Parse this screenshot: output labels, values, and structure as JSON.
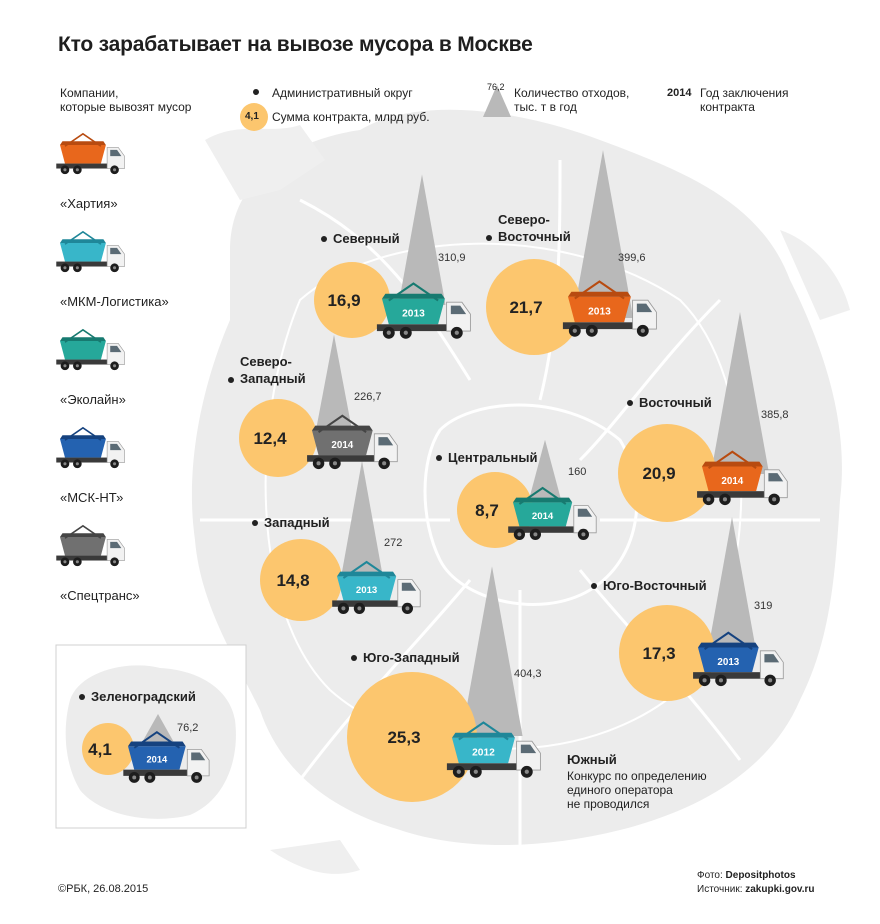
{
  "title": "Кто зарабатывает на вывозе мусора в Москве",
  "legend": {
    "companies_heading": [
      "Компании,",
      "которые вывозят мусор"
    ],
    "admin_district": "Административный округ",
    "contract_sample_value": "4,1",
    "contract_sum": "Сумма контракта, млрд руб.",
    "waste_sample_value": "76,2",
    "waste_amount": [
      "Количество отходов,",
      "тыс. т в год"
    ],
    "year_sample": "2014",
    "year_label": [
      "Год заключения",
      "контракта"
    ]
  },
  "companies": [
    {
      "name": "«Хартия»",
      "color": "#e8671c",
      "dark": "#b84b10"
    },
    {
      "name": "«МКМ-Логистика»",
      "color": "#38b6c9",
      "dark": "#1f8799"
    },
    {
      "name": "«Эколайн»",
      "color": "#26a89a",
      "dark": "#177a70"
    },
    {
      "name": "«МСК-НТ»",
      "color": "#2462b0",
      "dark": "#15427f"
    },
    {
      "name": "«Спецтранс»",
      "color": "#707070",
      "dark": "#454545"
    }
  ],
  "districts": [
    {
      "name": [
        "Северный"
      ],
      "contract": "16,9",
      "waste": "310,9",
      "year": "2013",
      "company": 2
    },
    {
      "name": [
        "Северо-",
        "Восточный"
      ],
      "contract": "21,7",
      "waste": "399,6",
      "year": "2013",
      "company": 0
    },
    {
      "name": [
        "Северо-",
        "Западный"
      ],
      "contract": "12,4",
      "waste": "226,7",
      "year": "2014",
      "company": 4
    },
    {
      "name": [
        "Восточный"
      ],
      "contract": "20,9",
      "waste": "385,8",
      "year": "2014",
      "company": 0
    },
    {
      "name": [
        "Центральный"
      ],
      "contract": "8,7",
      "waste": "160",
      "year": "2014",
      "company": 2
    },
    {
      "name": [
        "Западный"
      ],
      "contract": "14,8",
      "waste": "272",
      "year": "2013",
      "company": 1
    },
    {
      "name": [
        "Юго-Восточный"
      ],
      "contract": "17,3",
      "waste": "319",
      "year": "2013",
      "company": 3
    },
    {
      "name": [
        "Юго-Западный"
      ],
      "contract": "25,3",
      "waste": "404,3",
      "year": "2012",
      "company": 1
    },
    {
      "name": [
        "Зеленоградский"
      ],
      "contract": "4,1",
      "waste": "76,2",
      "year": "2014",
      "company": 3
    }
  ],
  "south": {
    "name": "Южный",
    "note": [
      "Конкурс по определению",
      "единого оператора",
      "не проводился"
    ]
  },
  "footer": {
    "copyright": "©РБК, 26.08.2015",
    "photo_prefix": "Фото: ",
    "photo_source": "Depositphotos",
    "source_prefix": "Источник: ",
    "source": "zakupki.gov.ru"
  },
  "colors": {
    "circle": "#fcc66e",
    "spike": "#b9b9b9",
    "map": "#ececec",
    "map_line": "#ffffff"
  }
}
